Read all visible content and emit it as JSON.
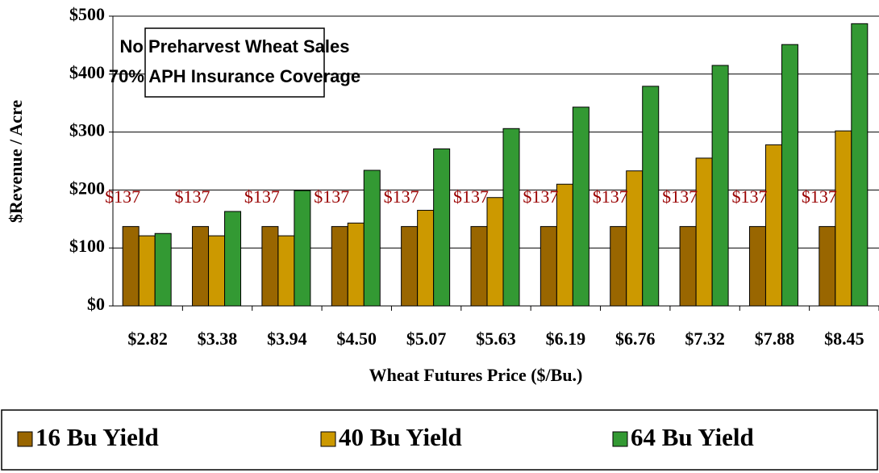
{
  "chart_data": {
    "type": "bar",
    "annotation": [
      "No Preharvest Wheat Sales",
      "70% APH Insurance Coverage"
    ],
    "x_label": "Wheat Futures Price ($/Bu.)",
    "y_label": "$Revenue / Acre",
    "categories": [
      "$2.82",
      "$3.38",
      "$3.94",
      "$4.50",
      "$5.07",
      "$5.63",
      "$6.19",
      "$6.76",
      "$7.32",
      "$7.88",
      "$8.45"
    ],
    "series": [
      {
        "name": "16 Bu Yield",
        "color": "#996600",
        "values": [
          137,
          137,
          137,
          137,
          137,
          137,
          137,
          137,
          137,
          137,
          137
        ],
        "value_labels": [
          "$137",
          "$137",
          "$137",
          "$137",
          "$137",
          "$137",
          "$137",
          "$137",
          "$137",
          "$137",
          "$137"
        ]
      },
      {
        "name": "40 Bu Yield",
        "color": "#cc9900",
        "values": [
          121,
          121,
          121,
          143,
          165,
          187,
          210,
          233,
          255,
          278,
          302
        ]
      },
      {
        "name": "64 Bu Yield",
        "color": "#339933",
        "values": [
          125,
          163,
          199,
          234,
          271,
          306,
          343,
          379,
          415,
          451,
          487
        ]
      }
    ],
    "ylim": [
      0,
      500
    ],
    "yticks": [
      {
        "value": 0,
        "label": "$0"
      },
      {
        "value": 100,
        "label": "$100"
      },
      {
        "value": 200,
        "label": "$200"
      },
      {
        "value": 300,
        "label": "$300"
      },
      {
        "value": 400,
        "label": "$400"
      },
      {
        "value": 500,
        "label": "$500"
      }
    ],
    "grid": true,
    "legend": "bottom"
  }
}
